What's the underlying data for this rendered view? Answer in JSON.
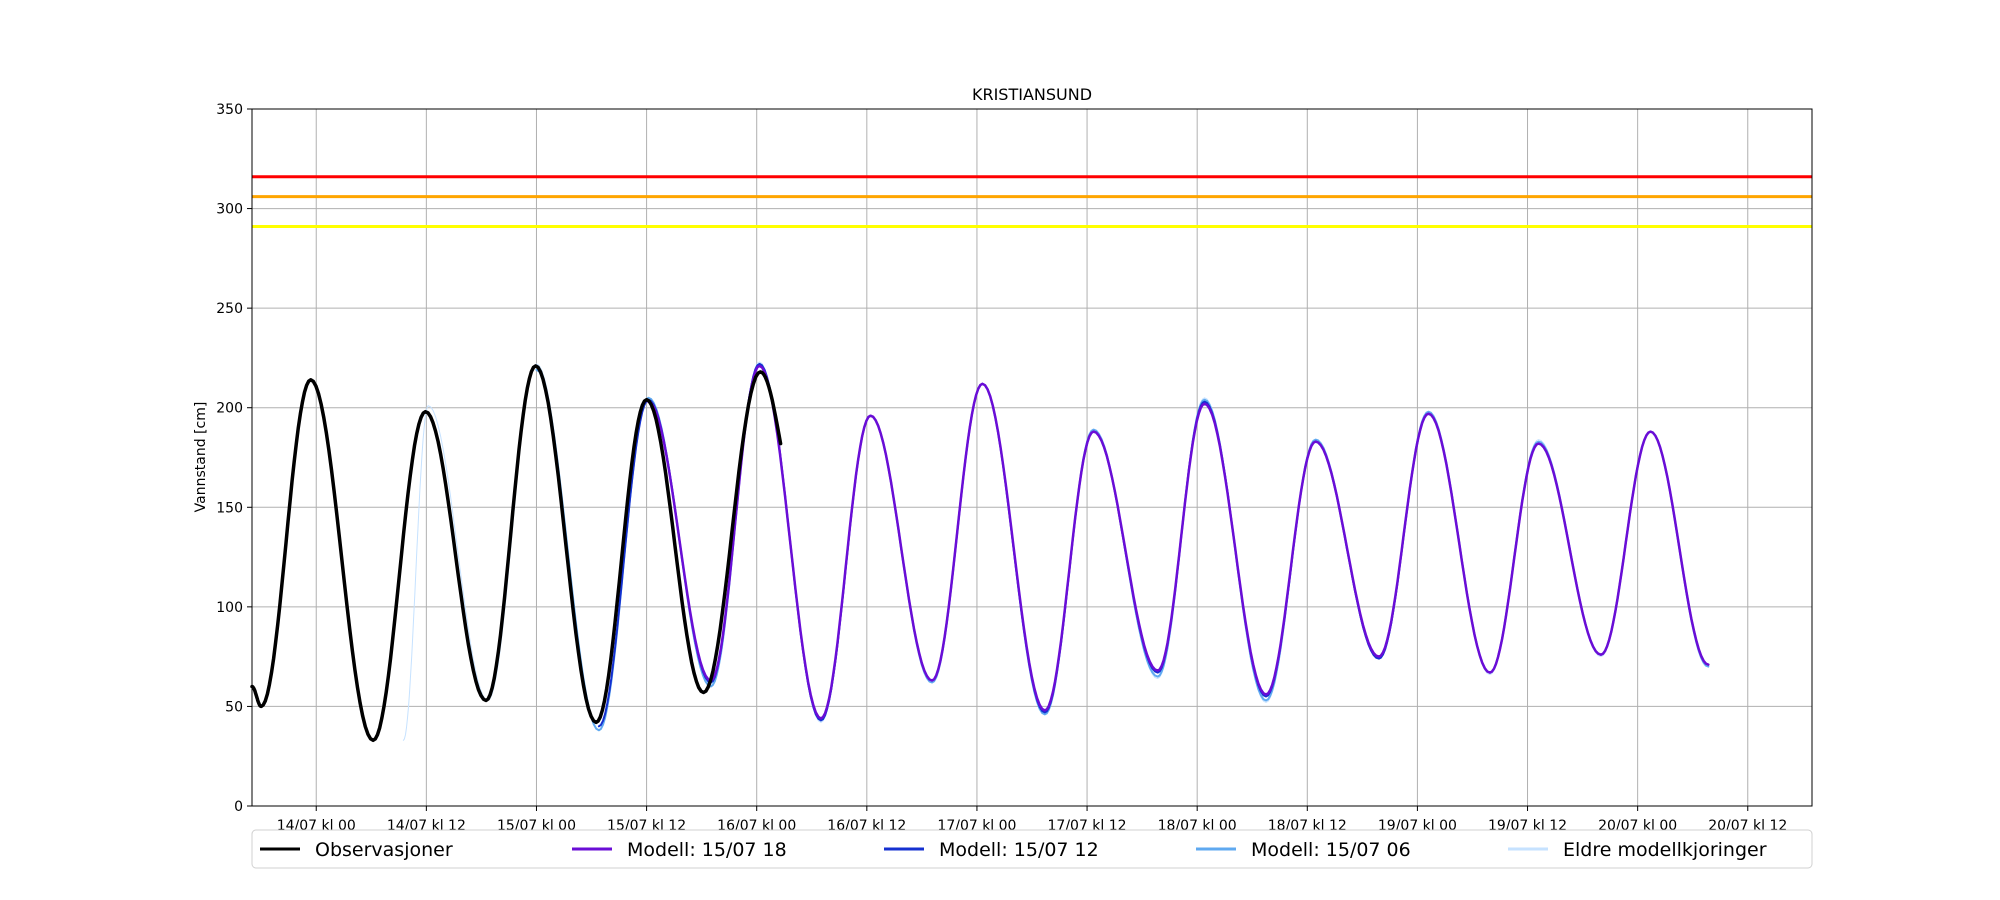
{
  "chart_data": {
    "type": "line",
    "title": "KRISTIANSUND",
    "xlabel": "",
    "ylabel": "Vannstand [cm]",
    "ylim": [
      0,
      350
    ],
    "yticks": [
      0,
      50,
      100,
      150,
      200,
      250,
      300,
      350
    ],
    "x_unit": "hours since 13/07 kl 00",
    "xlim": [
      17.0,
      187.0
    ],
    "xticks": [
      {
        "x": 24,
        "label": "14/07 kl 00"
      },
      {
        "x": 36,
        "label": "14/07 kl 12"
      },
      {
        "x": 48,
        "label": "15/07 kl 00"
      },
      {
        "x": 60,
        "label": "15/07 kl 12"
      },
      {
        "x": 72,
        "label": "16/07 kl 00"
      },
      {
        "x": 84,
        "label": "16/07 kl 12"
      },
      {
        "x": 96,
        "label": "17/07 kl 00"
      },
      {
        "x": 108,
        "label": "17/07 kl 12"
      },
      {
        "x": 120,
        "label": "18/07 kl 00"
      },
      {
        "x": 132,
        "label": "18/07 kl 12"
      },
      {
        "x": 144,
        "label": "19/07 kl 00"
      },
      {
        "x": 156,
        "label": "19/07 kl 12"
      },
      {
        "x": 168,
        "label": "20/07 kl 00"
      },
      {
        "x": 180,
        "label": "20/07 kl 12"
      }
    ],
    "grid": true,
    "legend_position": "bottom",
    "thresholds": [
      {
        "value": 316,
        "color": "#ff0000"
      },
      {
        "value": 306,
        "color": "#ffa500"
      },
      {
        "value": 291,
        "color": "#ffff00"
      }
    ],
    "series": [
      {
        "name": "Eldre modellkjoringer",
        "color": "#c6e2ff",
        "width": 1,
        "points": [
          [
            33.5,
            33
          ],
          [
            36.2,
            201
          ],
          [
            42.7,
            53
          ],
          [
            48.0,
            222
          ],
          [
            54.8,
            38
          ],
          [
            60.2,
            205
          ],
          [
            67.0,
            61
          ],
          [
            72.3,
            223
          ],
          [
            79.0,
            42
          ],
          [
            84.4,
            196
          ],
          [
            91.1,
            62
          ],
          [
            96.6,
            212
          ],
          [
            103.4,
            46
          ],
          [
            108.7,
            189
          ],
          [
            115.7,
            64
          ],
          [
            120.8,
            205
          ],
          [
            127.5,
            52
          ],
          [
            132.9,
            184
          ],
          [
            139.8,
            74
          ],
          [
            145.2,
            198
          ],
          [
            151.9,
            66
          ],
          [
            157.2,
            184
          ],
          [
            164.0,
            75
          ],
          [
            169.4,
            188
          ],
          [
            175.7,
            70
          ]
        ]
      },
      {
        "name": "Modell: 15/07 06",
        "color": "#5fa9f0",
        "width": 2,
        "points": [
          [
            48.0,
            219
          ],
          [
            54.8,
            38
          ],
          [
            60.2,
            205
          ],
          [
            67.0,
            60
          ],
          [
            72.3,
            222
          ],
          [
            79.0,
            43
          ],
          [
            84.4,
            196
          ],
          [
            91.1,
            62
          ],
          [
            96.6,
            212
          ],
          [
            103.4,
            46
          ],
          [
            108.7,
            189
          ],
          [
            115.7,
            65
          ],
          [
            120.8,
            204
          ],
          [
            127.5,
            53
          ],
          [
            132.9,
            184
          ],
          [
            139.8,
            74
          ],
          [
            145.2,
            198
          ],
          [
            151.9,
            67
          ],
          [
            157.2,
            183
          ],
          [
            164.0,
            76
          ],
          [
            169.4,
            188
          ],
          [
            175.7,
            70
          ]
        ]
      },
      {
        "name": "Modell: 15/07 12",
        "color": "#1530d0",
        "width": 2,
        "points": [
          [
            54.8,
            40
          ],
          [
            60.2,
            204
          ],
          [
            67.0,
            62
          ],
          [
            72.3,
            222
          ],
          [
            79.0,
            43
          ],
          [
            84.4,
            196
          ],
          [
            91.1,
            63
          ],
          [
            96.6,
            212
          ],
          [
            103.4,
            47
          ],
          [
            108.7,
            188
          ],
          [
            115.7,
            67
          ],
          [
            120.8,
            203
          ],
          [
            127.5,
            55
          ],
          [
            132.9,
            183
          ],
          [
            139.8,
            74
          ],
          [
            145.2,
            197
          ],
          [
            151.9,
            67
          ],
          [
            157.2,
            182
          ],
          [
            164.0,
            76
          ],
          [
            169.4,
            188
          ],
          [
            175.7,
            71
          ]
        ]
      },
      {
        "name": "Modell: 15/07 18",
        "color": "#6a0dd6",
        "width": 2.5,
        "points": [
          [
            60.2,
            203
          ],
          [
            67.0,
            63
          ],
          [
            72.3,
            221
          ],
          [
            79.0,
            44
          ],
          [
            84.4,
            196
          ],
          [
            91.1,
            63
          ],
          [
            96.6,
            212
          ],
          [
            103.4,
            48
          ],
          [
            108.7,
            188
          ],
          [
            115.7,
            68
          ],
          [
            120.8,
            202
          ],
          [
            127.5,
            56
          ],
          [
            132.9,
            183
          ],
          [
            139.8,
            75
          ],
          [
            145.2,
            197
          ],
          [
            151.9,
            67
          ],
          [
            157.2,
            182
          ],
          [
            164.0,
            76
          ],
          [
            169.4,
            188
          ],
          [
            175.7,
            71
          ]
        ]
      },
      {
        "name": "Observasjoner",
        "color": "#000000",
        "width": 3.5,
        "points": [
          [
            17.0,
            60
          ],
          [
            18.0,
            50
          ],
          [
            23.4,
            214
          ],
          [
            30.2,
            33
          ],
          [
            35.9,
            198
          ],
          [
            42.5,
            53
          ],
          [
            47.9,
            221
          ],
          [
            54.5,
            42
          ],
          [
            60.0,
            204
          ],
          [
            66.2,
            57
          ],
          [
            72.4,
            218
          ]
        ],
        "end": [
          74.6,
          182
        ]
      }
    ],
    "legend": [
      {
        "label": "Observasjoner",
        "color": "#000000"
      },
      {
        "label": "Modell: 15/07 18",
        "color": "#6a0dd6"
      },
      {
        "label": "Modell: 15/07 12",
        "color": "#1530d0"
      },
      {
        "label": "Modell: 15/07 06",
        "color": "#5fa9f0"
      },
      {
        "label": "Eldre modellkjoringer",
        "color": "#c6e2ff"
      }
    ]
  }
}
